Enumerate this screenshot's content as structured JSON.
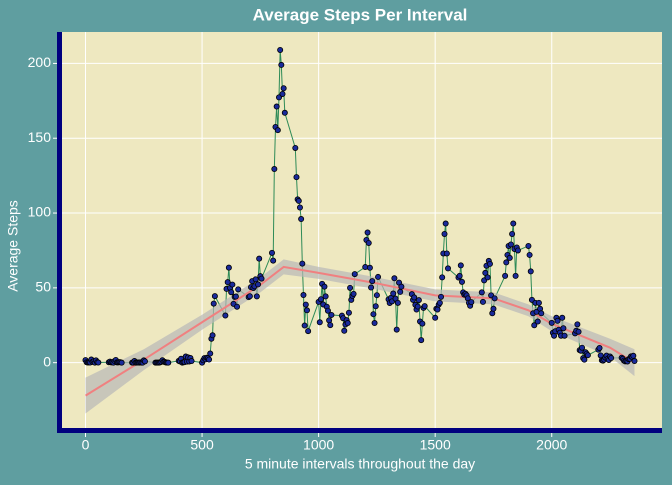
{
  "chart_data": {
    "type": "line",
    "title": "Average Steps Per Interval",
    "x_label": "5 minute intervals throughout the day",
    "y_label": "Average Steps",
    "x": [
      0,
      5,
      10,
      15,
      20,
      25,
      30,
      35,
      40,
      45,
      50,
      55,
      100,
      105,
      110,
      115,
      120,
      125,
      130,
      135,
      140,
      145,
      150,
      155,
      200,
      205,
      210,
      215,
      220,
      225,
      230,
      235,
      240,
      245,
      250,
      255,
      300,
      305,
      310,
      315,
      320,
      325,
      330,
      335,
      340,
      345,
      350,
      355,
      400,
      405,
      410,
      415,
      420,
      425,
      430,
      435,
      440,
      445,
      450,
      455,
      500,
      505,
      510,
      515,
      520,
      525,
      530,
      535,
      540,
      545,
      550,
      555,
      600,
      605,
      610,
      615,
      620,
      625,
      630,
      635,
      640,
      645,
      650,
      655,
      700,
      705,
      710,
      715,
      720,
      725,
      730,
      735,
      740,
      745,
      750,
      755,
      800,
      805,
      810,
      815,
      820,
      825,
      830,
      835,
      840,
      845,
      850,
      855,
      900,
      905,
      910,
      915,
      920,
      925,
      930,
      935,
      940,
      945,
      950,
      955,
      1000,
      1005,
      1010,
      1015,
      1020,
      1025,
      1030,
      1035,
      1040,
      1045,
      1050,
      1055,
      1100,
      1105,
      1110,
      1115,
      1120,
      1125,
      1130,
      1135,
      1140,
      1145,
      1150,
      1155,
      1200,
      1205,
      1210,
      1215,
      1220,
      1225,
      1230,
      1235,
      1240,
      1245,
      1250,
      1255,
      1300,
      1305,
      1310,
      1315,
      1320,
      1325,
      1330,
      1335,
      1340,
      1345,
      1350,
      1355,
      1400,
      1405,
      1410,
      1415,
      1420,
      1425,
      1430,
      1435,
      1440,
      1445,
      1450,
      1455,
      1500,
      1505,
      1510,
      1515,
      1520,
      1525,
      1530,
      1535,
      1540,
      1545,
      1550,
      1555,
      1600,
      1605,
      1610,
      1615,
      1620,
      1625,
      1630,
      1635,
      1640,
      1645,
      1650,
      1655,
      1700,
      1705,
      1710,
      1715,
      1720,
      1725,
      1730,
      1735,
      1740,
      1745,
      1750,
      1755,
      1800,
      1805,
      1810,
      1815,
      1820,
      1825,
      1830,
      1835,
      1840,
      1845,
      1850,
      1855,
      1900,
      1905,
      1910,
      1915,
      1920,
      1925,
      1930,
      1935,
      1940,
      1945,
      1950,
      1955,
      2000,
      2005,
      2010,
      2015,
      2020,
      2025,
      2030,
      2035,
      2040,
      2045,
      2050,
      2055,
      2100,
      2105,
      2110,
      2115,
      2120,
      2125,
      2130,
      2135,
      2140,
      2145,
      2150,
      2155,
      2200,
      2205,
      2210,
      2215,
      2220,
      2225,
      2230,
      2235,
      2240,
      2245,
      2250,
      2255,
      2300,
      2305,
      2310,
      2315,
      2320,
      2325,
      2330,
      2335,
      2340,
      2345,
      2350,
      2355
    ],
    "series": [
      {
        "name": "Average Steps",
        "color": "#2e8b57",
        "point_color": "#1a2a9c",
        "values": [
          1.7,
          0.3,
          0.1,
          0.2,
          0.1,
          2.1,
          0.5,
          0.9,
          0,
          1.5,
          0.3,
          0.1,
          0.3,
          0.7,
          0.2,
          0.3,
          0,
          1.1,
          1.8,
          0.2,
          0.2,
          0.4,
          0.3,
          0,
          0,
          0,
          1.1,
          0,
          0,
          0.1,
          0,
          0.2,
          0,
          0,
          1.5,
          0.9,
          0,
          0,
          0,
          0,
          0.2,
          0.6,
          1.6,
          0.6,
          0.5,
          0.1,
          0,
          0,
          1.2,
          0.9,
          2.6,
          0,
          0.3,
          0.4,
          4.1,
          0.7,
          3.5,
          0.8,
          3.1,
          1.1,
          0,
          1.6,
          3,
          2.2,
          3.3,
          3,
          2.1,
          6.1,
          16,
          18.3,
          39.5,
          44.5,
          31.5,
          49.3,
          53.8,
          63.5,
          50,
          47.1,
          52.2,
          39.3,
          44,
          44.2,
          37.4,
          49,
          43.8,
          44.4,
          50.5,
          54.5,
          49.9,
          51,
          55.7,
          44.3,
          52.3,
          69.5,
          57.8,
          56.2,
          73.4,
          68.2,
          129.4,
          157.5,
          171.2,
          155.4,
          177.3,
          209,
          199,
          179.6,
          183.4,
          167,
          143.5,
          124,
          109.1,
          108.1,
          103.7,
          96,
          66.2,
          45.2,
          24.8,
          38.8,
          35,
          21.1,
          40.6,
          27,
          42.4,
          52.7,
          38.9,
          50.8,
          44.3,
          37.4,
          34.7,
          28.3,
          25.1,
          31.9,
          31.4,
          29.7,
          21.3,
          25.5,
          28.4,
          26.5,
          33.4,
          50,
          42,
          44.6,
          46,
          59.2,
          63.9,
          82,
          87,
          80,
          63.4,
          50.2,
          54.5,
          32.4,
          26.5,
          37.7,
          45.1,
          57.3,
          42.3,
          39.9,
          43.3,
          41,
          46.2,
          56.4,
          42.8,
          22.1,
          40,
          53.5,
          47.3,
          50.8,
          45.8,
          42,
          43.6,
          38.7,
          35.5,
          37.5,
          41.8,
          27.5,
          15.1,
          26.1,
          36.6,
          37.8,
          30,
          36,
          35.5,
          38.8,
          40,
          44,
          57,
          73,
          86,
          93,
          73,
          63,
          56.9,
          58,
          65,
          54,
          47,
          45.5,
          46,
          45,
          43,
          40,
          38,
          40.5,
          47,
          40.6,
          55,
          60,
          64.8,
          57,
          68,
          66,
          45,
          33,
          36,
          43,
          58,
          67,
          72,
          78,
          70,
          79,
          86,
          93,
          76,
          58,
          77,
          75,
          78,
          72,
          61,
          42,
          33,
          25,
          40,
          34,
          27.5,
          40,
          36,
          33,
          26.6,
          20,
          18,
          21,
          30,
          28,
          22,
          20,
          18,
          30,
          23,
          18,
          19.6,
          21.3,
          25.6,
          20.7,
          8.4,
          8,
          10,
          3,
          2,
          7,
          6,
          5,
          8.7,
          9.8,
          4.8,
          1.6,
          1.4,
          2,
          3.4,
          4.7,
          2.6,
          1.8,
          4.1,
          3.1,
          3.3,
          2.6,
          1.4,
          0.9,
          1.1,
          0.8,
          2.4,
          2.6,
          4.2,
          3.8,
          4.6,
          1.1
        ]
      }
    ],
    "smooth": {
      "color": "#f08080",
      "band_color": "#b8b8b8",
      "x": [
        0,
        250,
        500,
        750,
        850,
        1000,
        1250,
        1500,
        1750,
        1900,
        2000,
        2250,
        2355
      ],
      "values": [
        -22,
        2,
        27,
        52,
        64,
        60,
        53,
        45,
        43,
        35,
        26,
        10,
        0
      ],
      "lower": [
        -34,
        -5,
        22,
        47,
        59,
        56,
        49,
        41,
        39,
        31,
        21,
        4,
        -9
      ],
      "upper": [
        -10,
        9,
        32,
        57,
        69,
        64,
        57,
        49,
        47,
        39,
        31,
        16,
        9
      ]
    },
    "xlim": [
      -118,
      2473
    ],
    "ylim": [
      -45,
      221
    ],
    "xticks": [
      0,
      500,
      1000,
      1500,
      2000
    ],
    "yticks": [
      0,
      50,
      100,
      150,
      200
    ],
    "grid": true
  }
}
